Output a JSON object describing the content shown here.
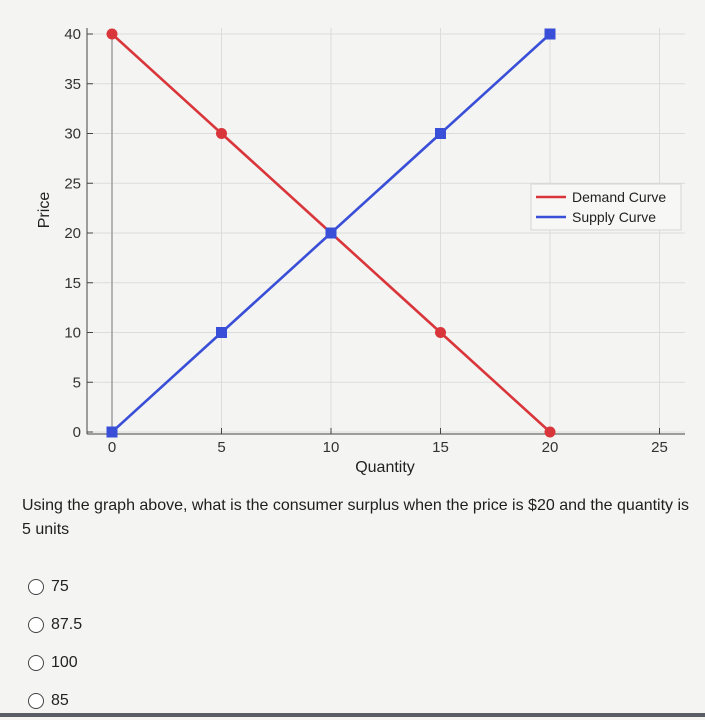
{
  "chart_data": {
    "type": "line",
    "xlabel": "Quantity",
    "ylabel": "Price",
    "xlim": [
      0,
      25
    ],
    "ylim": [
      0,
      40
    ],
    "x_ticks": [
      0,
      5,
      10,
      15,
      20,
      25
    ],
    "y_ticks": [
      0,
      5,
      10,
      15,
      20,
      25,
      30,
      35,
      40
    ],
    "grid": true,
    "legend_position": "center-right",
    "series": [
      {
        "name": "Demand Curve",
        "color": "#d9363b",
        "marker": "circle",
        "x": [
          0,
          5,
          10,
          15,
          20
        ],
        "y": [
          40,
          30,
          20,
          10,
          0
        ]
      },
      {
        "name": "Supply Curve",
        "color": "#3a4fd8",
        "marker": "square",
        "x": [
          0,
          5,
          10,
          15,
          20
        ],
        "y": [
          0,
          10,
          20,
          30,
          40
        ]
      }
    ]
  },
  "question": {
    "text": "Using the graph above, what is the consumer surplus when the price is $20 and the quantity is 5 units"
  },
  "options": [
    {
      "label": "75"
    },
    {
      "label": "87.5"
    },
    {
      "label": "100"
    },
    {
      "label": "85"
    }
  ]
}
